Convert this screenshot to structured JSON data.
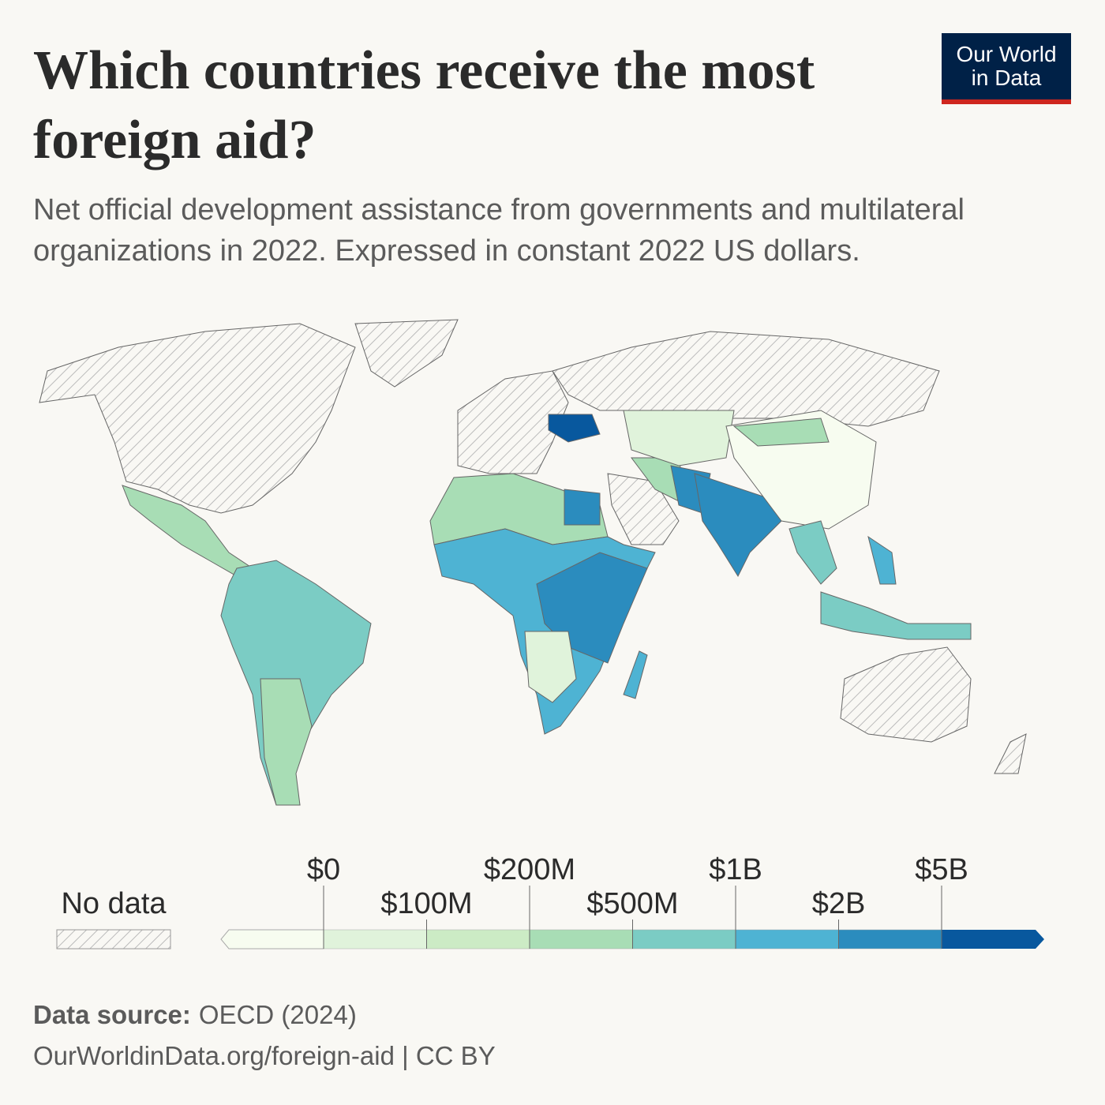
{
  "logo": {
    "line1": "Our World",
    "line2": "in Data"
  },
  "title": "Which countries receive the most foreign aid?",
  "subtitle": "Net official development assistance from governments and multilateral organizations in 2022. Expressed in constant 2022 US dollars.",
  "chart_data": {
    "type": "choropleth",
    "legend": {
      "no_data_label": "No data",
      "ticks": [
        {
          "value": 0,
          "label": "$0"
        },
        {
          "value": 100000000,
          "label": "$100M"
        },
        {
          "value": 200000000,
          "label": "$200M"
        },
        {
          "value": 500000000,
          "label": "$500M"
        },
        {
          "value": 1000000000,
          "label": "$1B"
        },
        {
          "value": 2000000000,
          "label": "$2B"
        },
        {
          "value": 5000000000,
          "label": "$5B"
        }
      ],
      "colors": [
        "#f7fcf0",
        "#e0f3db",
        "#ccebc5",
        "#a8ddb5",
        "#7bccc4",
        "#4eb3d3",
        "#2b8cbe",
        "#08589e"
      ]
    }
  },
  "footer": {
    "source_label": "Data source:",
    "source": "OECD (2024)",
    "url": "OurWorldinData.org/foreign-aid | CC BY"
  }
}
